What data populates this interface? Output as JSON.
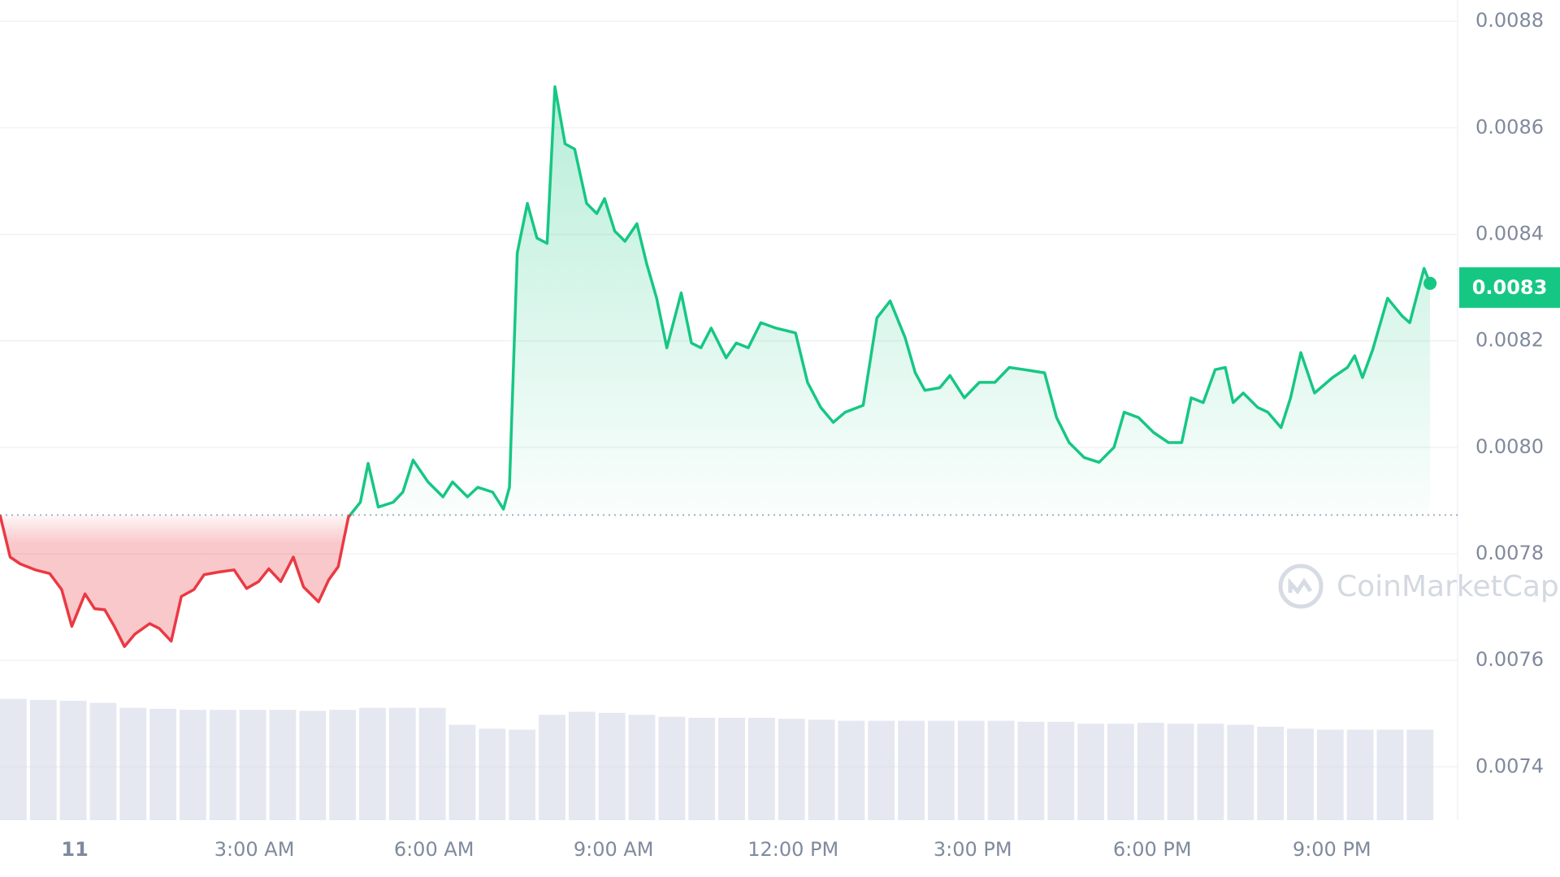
{
  "chart_data": {
    "type": "line",
    "x": [
      -1.25,
      -1.08,
      -0.91,
      -0.66,
      -0.42,
      -0.22,
      -0.05,
      0.17,
      0.33,
      0.5,
      0.66,
      0.83,
      1.0,
      1.25,
      1.41,
      1.61,
      1.78,
      1.99,
      2.16,
      2.41,
      2.66,
      2.87,
      3.07,
      3.24,
      3.44,
      3.65,
      3.82,
      4.07,
      4.24,
      4.4,
      4.57,
      4.77,
      4.9,
      5.07,
      5.32,
      5.48,
      5.65,
      5.9,
      6.15,
      6.31,
      6.56,
      6.73,
      6.98,
      7.16,
      7.26,
      7.39,
      7.56,
      7.72,
      7.89,
      8.02,
      8.19,
      8.35,
      8.55,
      8.72,
      8.85,
      9.02,
      9.19,
      9.39,
      9.55,
      9.72,
      9.89,
      10.13,
      10.3,
      10.46,
      10.63,
      10.88,
      11.05,
      11.25,
      11.46,
      11.71,
      12.04,
      12.24,
      12.46,
      12.67,
      12.87,
      13.17,
      13.4,
      13.62,
      13.87,
      14.04,
      14.2,
      14.45,
      14.62,
      14.86,
      15.11,
      15.37,
      15.61,
      15.86,
      16.2,
      16.4,
      16.61,
      16.86,
      17.11,
      17.36,
      17.53,
      17.77,
      18.02,
      18.27,
      18.49,
      18.65,
      18.85,
      19.05,
      19.22,
      19.35,
      19.52,
      19.76,
      19.93,
      20.15,
      20.31,
      20.48,
      20.71,
      21.01,
      21.26,
      21.38,
      21.51,
      21.68,
      21.93,
      22.17,
      22.3,
      22.54,
      22.64
    ],
    "values": [
      0.007873,
      0.007794,
      0.007781,
      0.00777,
      0.007763,
      0.007733,
      0.007664,
      0.007725,
      0.007697,
      0.007695,
      0.007664,
      0.007626,
      0.007649,
      0.007669,
      0.00766,
      0.007636,
      0.00772,
      0.007733,
      0.007761,
      0.007766,
      0.00777,
      0.007735,
      0.007748,
      0.007772,
      0.007748,
      0.007794,
      0.007738,
      0.00771,
      0.007751,
      0.007776,
      0.007869,
      0.007897,
      0.00797,
      0.007888,
      0.007897,
      0.007916,
      0.007976,
      0.007935,
      0.007907,
      0.007935,
      0.007907,
      0.007925,
      0.007916,
      0.007884,
      0.007925,
      0.008365,
      0.008458,
      0.008393,
      0.008383,
      0.008677,
      0.00857,
      0.00856,
      0.008458,
      0.008439,
      0.008467,
      0.008406,
      0.008387,
      0.00842,
      0.008346,
      0.00828,
      0.008187,
      0.00829,
      0.008196,
      0.008187,
      0.008224,
      0.008168,
      0.008196,
      0.008187,
      0.008234,
      0.008224,
      0.008215,
      0.008122,
      0.008075,
      0.008047,
      0.008066,
      0.008079,
      0.008243,
      0.008275,
      0.008206,
      0.00814,
      0.008107,
      0.008112,
      0.008135,
      0.008093,
      0.008122,
      0.008122,
      0.00815,
      0.008146,
      0.00814,
      0.008056,
      0.008009,
      0.007981,
      0.007972,
      0.008,
      0.008066,
      0.008056,
      0.008028,
      0.008009,
      0.008009,
      0.008093,
      0.008084,
      0.008146,
      0.00815,
      0.008084,
      0.008102,
      0.008075,
      0.008066,
      0.008037,
      0.008093,
      0.008178,
      0.008102,
      0.008131,
      0.00815,
      0.008172,
      0.008131,
      0.008183,
      0.00828,
      0.008247,
      0.008234,
      0.008336,
      0.008308
    ],
    "baseline": 0.007873,
    "current_price": 0.0083,
    "up_color": "#16c784",
    "down_color": "#ea3943",
    "xlim": [
      -1.25,
      23.1
    ],
    "xticks": [
      {
        "value": 0,
        "label": "11"
      },
      {
        "value": 3,
        "label": "3:00 AM"
      },
      {
        "value": 6,
        "label": "6:00 AM"
      },
      {
        "value": 9,
        "label": "9:00 AM"
      },
      {
        "value": 12,
        "label": "12:00 PM"
      },
      {
        "value": 15,
        "label": "3:00 PM"
      },
      {
        "value": 18,
        "label": "6:00 PM"
      },
      {
        "value": 21,
        "label": "9:00 PM"
      }
    ],
    "ylim": [
      0.0073,
      0.00884
    ],
    "yticks": [
      {
        "value": 0.0074,
        "label": "0.0074"
      },
      {
        "value": 0.0076,
        "label": "0.0076"
      },
      {
        "value": 0.0078,
        "label": "0.0078"
      },
      {
        "value": 0.008,
        "label": "0.0080"
      },
      {
        "value": 0.0082,
        "label": "0.0082"
      },
      {
        "value": 0.0084,
        "label": "0.0084"
      },
      {
        "value": 0.0086,
        "label": "0.0086"
      },
      {
        "value": 0.0088,
        "label": "0.0088"
      }
    ],
    "grid": true,
    "volume": {
      "color": "#cfd6e4",
      "ylim": [
        0,
        125
      ],
      "x": [
        -1.25,
        -0.75,
        -0.25,
        0.25,
        0.75,
        1.25,
        1.75,
        2.25,
        2.75,
        3.25,
        3.75,
        4.25,
        4.75,
        5.25,
        5.75,
        6.25,
        6.75,
        7.25,
        7.75,
        8.25,
        8.75,
        9.25,
        9.75,
        10.25,
        10.75,
        11.25,
        11.75,
        12.25,
        12.75,
        13.25,
        13.75,
        14.25,
        14.75,
        15.25,
        15.75,
        16.25,
        16.75,
        17.25,
        17.75,
        18.25,
        18.75,
        19.25,
        19.75,
        20.25,
        20.75,
        21.25,
        21.75,
        22.25
      ],
      "values": [
        122,
        121,
        120,
        118,
        113,
        112,
        111,
        111,
        111,
        111,
        110,
        111,
        113,
        113,
        113,
        96,
        92,
        91,
        106,
        109,
        108,
        106,
        104,
        103,
        103,
        103,
        102,
        101,
        100,
        100,
        100,
        100,
        100,
        100,
        99,
        99,
        97,
        97,
        98,
        97,
        97,
        96,
        94,
        92,
        91,
        91,
        91,
        91
      ]
    },
    "watermark": "CoinMarketCap"
  }
}
